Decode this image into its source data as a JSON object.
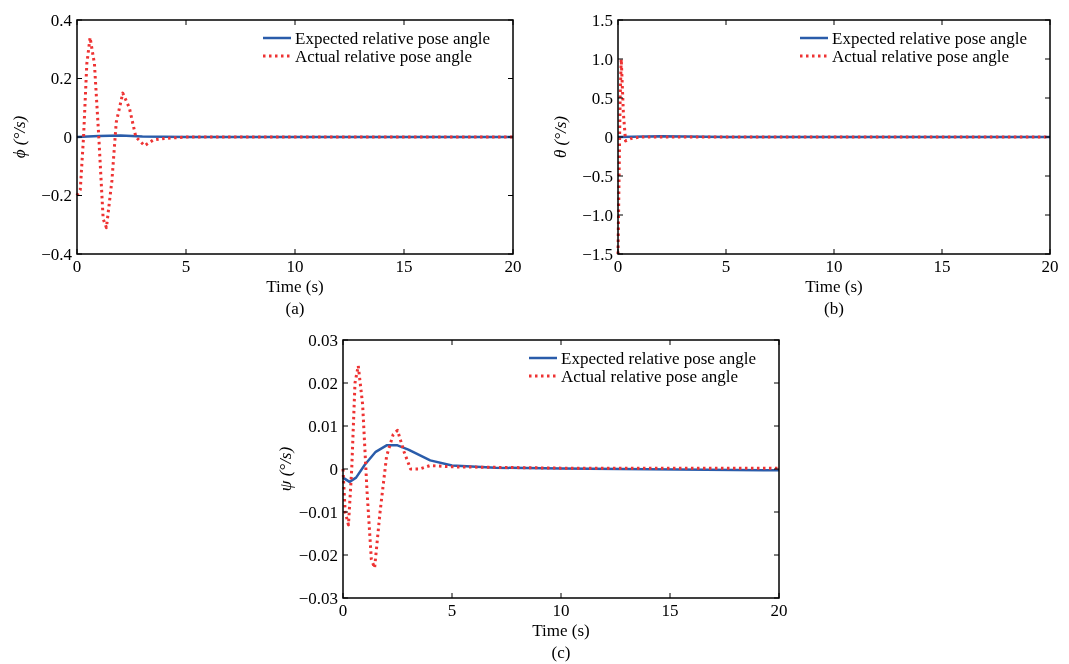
{
  "chart_data": [
    {
      "type": "line",
      "xlabel": "Time (s)",
      "ylabel": "ϕ (°/s)",
      "annotations": [
        "(a)"
      ],
      "legend": "top right",
      "xlim": [
        0,
        20
      ],
      "ylim": [
        -0.4,
        0.4
      ],
      "xticks": [
        0,
        5,
        10,
        15,
        20
      ],
      "yticks": [
        {
          "value": -0.4,
          "label": "−0.4"
        },
        {
          "value": -0.2,
          "label": "−0.2"
        },
        0,
        0.2,
        0.4
      ],
      "series": [
        {
          "name": "Expected relative pose angle",
          "color": "#2a5caa",
          "line_style": "solid",
          "x": [
            0,
            1,
            2,
            3,
            5,
            10,
            20
          ],
          "values": [
            0,
            0.003,
            0.005,
            0.002,
            0,
            0,
            0
          ]
        },
        {
          "name": "Actual relative pose angle",
          "color": "#ee3333",
          "line_style": "dotted",
          "x": [
            0,
            0.15,
            0.3,
            0.45,
            0.6,
            0.8,
            1.0,
            1.2,
            1.35,
            1.6,
            1.8,
            2.1,
            2.4,
            2.7,
            3.1,
            3.5,
            4,
            5,
            10,
            20
          ],
          "values": [
            -0.2,
            -0.18,
            0,
            0.25,
            0.34,
            0.25,
            0,
            -0.28,
            -0.31,
            -0.15,
            0.05,
            0.15,
            0.1,
            0,
            -0.03,
            -0.01,
            -0.005,
            0,
            0,
            0
          ]
        }
      ]
    },
    {
      "type": "line",
      "xlabel": "Time (s)",
      "ylabel": "θ (°/s)",
      "annotations": [
        "(b)"
      ],
      "legend": "top right",
      "xlim": [
        0,
        20
      ],
      "ylim": [
        -1.5,
        1.5
      ],
      "xticks": [
        0,
        5,
        10,
        15,
        20
      ],
      "yticks": [
        {
          "value": -1.5,
          "label": "−1.5"
        },
        {
          "value": -1,
          "label": "−1.0"
        },
        {
          "value": -0.5,
          "label": "−0.5"
        },
        0,
        0.5,
        {
          "value": 1,
          "label": "1.0"
        },
        1.5
      ],
      "series": [
        {
          "name": "Expected relative pose angle",
          "color": "#2a5caa",
          "line_style": "solid",
          "x": [
            0,
            2,
            5,
            20
          ],
          "values": [
            0,
            0.01,
            0,
            0
          ]
        },
        {
          "name": "Actual relative pose angle",
          "color": "#ee3333",
          "line_style": "dotted",
          "x": [
            0,
            0.05,
            0.1,
            0.15,
            0.25,
            0.35,
            0.6,
            1,
            20
          ],
          "values": [
            -1.5,
            -0.5,
            0.5,
            1.0,
            0.3,
            -0.05,
            -0.02,
            0,
            0
          ]
        }
      ]
    },
    {
      "type": "line",
      "xlabel": "Time (s)",
      "ylabel": "ψ (°/s)",
      "annotations": [
        "(c)"
      ],
      "legend": "top right",
      "xlim": [
        0,
        20
      ],
      "ylim": [
        -0.03,
        0.03
      ],
      "xticks": [
        0,
        5,
        10,
        15,
        20
      ],
      "yticks": [
        {
          "value": -0.03,
          "label": "−0.03"
        },
        {
          "value": -0.02,
          "label": "−0.02"
        },
        {
          "value": -0.01,
          "label": "−0.01"
        },
        0,
        0.01,
        0.02,
        0.03
      ],
      "series": [
        {
          "name": "Expected relative pose angle",
          "color": "#2a5caa",
          "line_style": "solid",
          "x": [
            0,
            0.3,
            0.6,
            1,
            1.5,
            2,
            2.5,
            3,
            4,
            5,
            7,
            10,
            20
          ],
          "values": [
            -0.002,
            -0.003,
            -0.002,
            0.001,
            0.004,
            0.0055,
            0.0055,
            0.0045,
            0.002,
            0.0008,
            0.0003,
            0.0001,
            -0.0003
          ]
        },
        {
          "name": "Actual relative pose angle",
          "color": "#ee3333",
          "line_style": "dotted",
          "x": [
            0,
            0.1,
            0.25,
            0.4,
            0.55,
            0.7,
            0.9,
            1.1,
            1.3,
            1.45,
            1.7,
            2.0,
            2.3,
            2.5,
            2.8,
            3.1,
            3.5,
            4,
            5,
            10,
            20
          ],
          "values": [
            0,
            -0.01,
            -0.013,
            0,
            0.02,
            0.024,
            0.015,
            -0.005,
            -0.021,
            -0.023,
            -0.01,
            0.003,
            0.008,
            0.009,
            0.004,
            0,
            0,
            0.0008,
            0.0005,
            0.0002,
            0.0002
          ]
        }
      ]
    }
  ]
}
